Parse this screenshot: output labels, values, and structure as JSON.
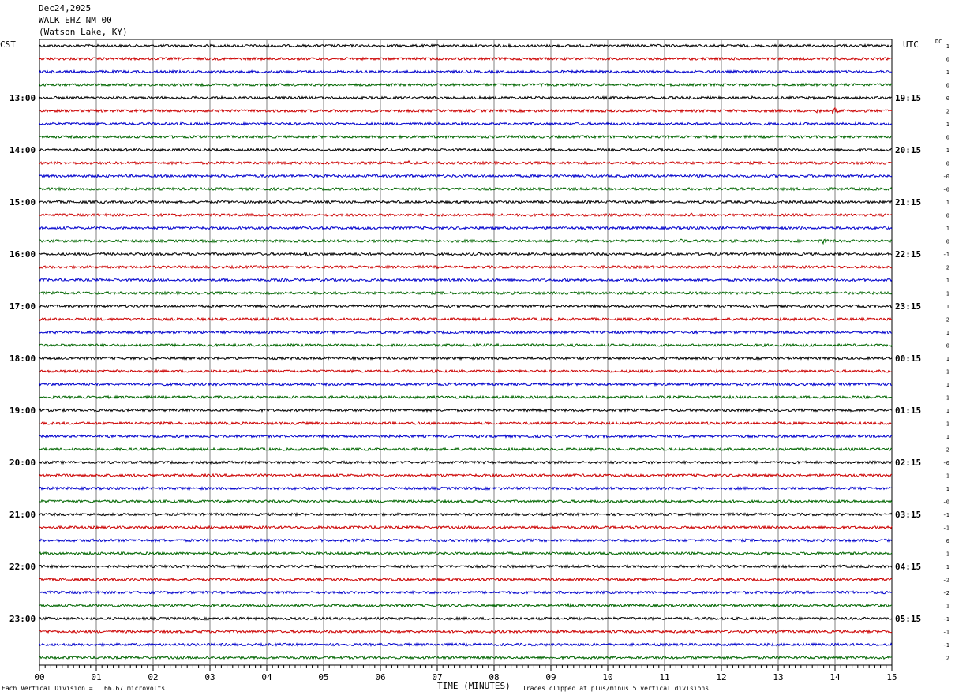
{
  "header": {
    "date": "Dec24,2025",
    "station": "WALK EHZ NM 00",
    "location": "(Watson Lake, KY)"
  },
  "left_tz": "CST",
  "right_tz": "UTC",
  "dc_label": "DC",
  "footer": {
    "scale": "Each Vertical Division =   66.67 microvolts",
    "xtitle": "TIME (MINUTES)",
    "clip": "Traces clipped at plus/minus 5 vertical divisions"
  },
  "colors": {
    "black": "#000000",
    "red": "#cc0000",
    "blue": "#0000cc",
    "green": "#006600",
    "grid": "#808080"
  },
  "chart_data": {
    "type": "line",
    "title": "WALK EHZ NM 00",
    "xlabel": "TIME (MINUTES)",
    "xlim": [
      0,
      15
    ],
    "x_ticks": [
      "00",
      "01",
      "02",
      "03",
      "04",
      "05",
      "06",
      "07",
      "08",
      "09",
      "10",
      "11",
      "12",
      "13",
      "14",
      "15"
    ],
    "trace_count": 48,
    "trace_colors": [
      "black",
      "red",
      "blue",
      "green"
    ],
    "left_hour_labels": [
      "13:00",
      "14:00",
      "15:00",
      "16:00",
      "17:00",
      "18:00",
      "19:00",
      "20:00",
      "21:00",
      "22:00",
      "23:00"
    ],
    "right_hour_labels": [
      "19:15",
      "20:15",
      "21:15",
      "22:15",
      "23:15",
      "00:15",
      "01:15",
      "02:15",
      "03:15",
      "04:15",
      "05:15"
    ],
    "dc_offsets": [
      "1",
      "0",
      "1",
      "0",
      "0",
      "2",
      "1",
      "0",
      "1",
      "0",
      "-0",
      "-0",
      "1",
      "0",
      "1",
      "0",
      "-1",
      "2",
      "1",
      "1",
      "1",
      "-2",
      "1",
      "0",
      "1",
      "-1",
      "1",
      "1",
      "1",
      "1",
      "1",
      "2",
      "-0",
      "1",
      "1",
      "-0",
      "-1",
      "-1",
      "0",
      "1",
      "1",
      "-2",
      "-2",
      "1",
      "-1",
      "-1",
      "-1",
      "2"
    ],
    "events": [
      {
        "trace": 4,
        "minute": 12.6,
        "amplitude": 2
      },
      {
        "trace": 5,
        "minute": 14.0,
        "amplitude": 6
      },
      {
        "trace": 5,
        "minute": 13.7,
        "amplitude": 2
      },
      {
        "trace": 9,
        "minute": 6.5,
        "amplitude": 2
      },
      {
        "trace": 13,
        "minute": 11.45,
        "amplitude": 3
      },
      {
        "trace": 15,
        "minute": 13.8,
        "amplitude": 4
      },
      {
        "trace": 15,
        "minute": 11.3,
        "amplitude": 2
      },
      {
        "trace": 16,
        "minute": 4.7,
        "amplitude": 3
      },
      {
        "trace": 16,
        "minute": 1.1,
        "amplitude": 2
      },
      {
        "trace": 43,
        "minute": 9.3,
        "amplitude": 4
      }
    ]
  }
}
